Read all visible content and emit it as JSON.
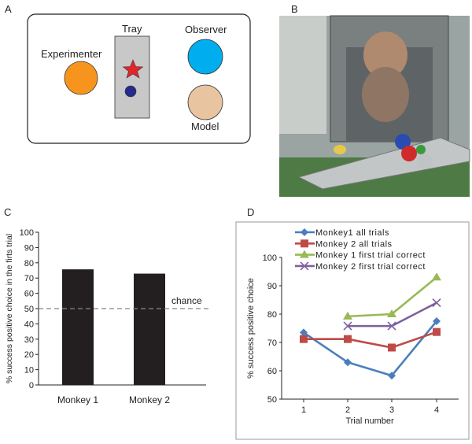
{
  "panels": {
    "a": {
      "label": "A",
      "experimenter": "Experimenter",
      "tray": "Tray",
      "observer": "Observer",
      "model": "Model",
      "colors": {
        "experimenter": "#f7941d",
        "observer": "#00aeef",
        "model": "#e8c4a0",
        "tray": "#c8c8c8",
        "star": "#e0262b",
        "ball": "#262a8c"
      }
    },
    "b": {
      "label": "B"
    },
    "c": {
      "label": "C"
    },
    "d": {
      "label": "D"
    }
  },
  "chart_data": [
    {
      "type": "bar",
      "categories": [
        "Monkey 1",
        "Monkey 2"
      ],
      "values": [
        75.7,
        72.9
      ],
      "ylabel": "% success positive choice in the firts trial",
      "xlabel": "",
      "ylim": [
        0,
        100
      ],
      "yticks": [
        0,
        10,
        20,
        30,
        40,
        50,
        60,
        70,
        80,
        90,
        100
      ],
      "reference_line": {
        "value": 50,
        "label": "chance",
        "style": "dashed"
      },
      "bar_color": "#231f20",
      "grid": false
    },
    {
      "type": "line",
      "x": [
        1,
        2,
        3,
        4
      ],
      "xlabel": "Trial number",
      "ylabel": "% success positive choice",
      "ylim": [
        50,
        100
      ],
      "yticks": [
        50,
        60,
        70,
        80,
        90,
        100
      ],
      "legend_position": "top",
      "grid": false,
      "series": [
        {
          "name": "Monkey1 all trials",
          "values": [
            73.5,
            63,
            58.3,
            77.5
          ],
          "color": "#4a7ebb",
          "marker": "diamond"
        },
        {
          "name": "Monkey 2 all trials",
          "values": [
            71.2,
            71.2,
            68.2,
            73.7
          ],
          "color": "#be4b48",
          "marker": "square"
        },
        {
          "name": "Monkey 1 first trial correct",
          "values": [
            null,
            79.2,
            80,
            93
          ],
          "color": "#98b954",
          "marker": "triangle"
        },
        {
          "name": "Monkey 2 first trial correct",
          "values": [
            null,
            75.8,
            75.8,
            84
          ],
          "color": "#7d60a0",
          "marker": "x"
        }
      ]
    }
  ]
}
